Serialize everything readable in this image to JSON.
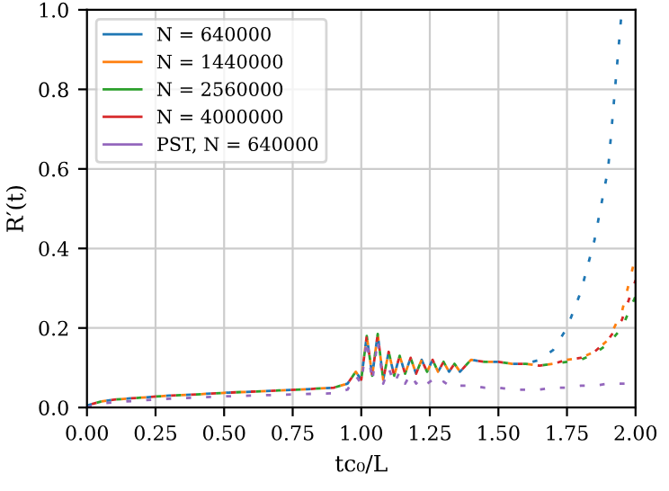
{
  "chart_data": {
    "type": "line",
    "xlabel": "tc₀/L",
    "ylabel": "R′(t)",
    "x": [
      0,
      0.05,
      0.1,
      0.2,
      0.3,
      0.4,
      0.5,
      0.6,
      0.7,
      0.8,
      0.9,
      0.95,
      0.98,
      1.0,
      1.02,
      1.04,
      1.06,
      1.08,
      1.1,
      1.12,
      1.14,
      1.16,
      1.18,
      1.2,
      1.22,
      1.24,
      1.26,
      1.28,
      1.3,
      1.32,
      1.34,
      1.36,
      1.4,
      1.45,
      1.5,
      1.55,
      1.6,
      1.65,
      1.7,
      1.75,
      1.8,
      1.85,
      1.9,
      1.95,
      2.0
    ],
    "series": [
      {
        "name": "N = 640000",
        "color": "#1f77b4",
        "values": [
          0.005,
          0.015,
          0.02,
          0.025,
          0.03,
          0.033,
          0.037,
          0.04,
          0.043,
          0.046,
          0.05,
          0.06,
          0.09,
          0.07,
          0.18,
          0.08,
          0.185,
          0.07,
          0.14,
          0.08,
          0.13,
          0.085,
          0.125,
          0.085,
          0.12,
          0.09,
          0.12,
          0.09,
          0.115,
          0.09,
          0.11,
          0.09,
          0.12,
          0.115,
          0.115,
          0.11,
          0.11,
          0.12,
          0.145,
          0.2,
          0.29,
          0.42,
          0.6,
          1.0,
          null
        ]
      },
      {
        "name": "N = 1440000",
        "color": "#ff7f0e",
        "values": [
          0.005,
          0.015,
          0.02,
          0.025,
          0.03,
          0.033,
          0.037,
          0.04,
          0.043,
          0.046,
          0.05,
          0.06,
          0.09,
          0.07,
          0.18,
          0.08,
          0.185,
          0.07,
          0.14,
          0.08,
          0.13,
          0.085,
          0.125,
          0.085,
          0.12,
          0.09,
          0.12,
          0.09,
          0.115,
          0.09,
          0.11,
          0.09,
          0.12,
          0.115,
          0.115,
          0.11,
          0.11,
          0.105,
          0.11,
          0.12,
          0.125,
          0.14,
          0.17,
          0.24,
          0.38
        ]
      },
      {
        "name": "N = 2560000",
        "color": "#2ca02c",
        "values": [
          0.005,
          0.015,
          0.02,
          0.025,
          0.03,
          0.033,
          0.037,
          0.04,
          0.043,
          0.046,
          0.05,
          0.06,
          0.09,
          0.07,
          0.18,
          0.08,
          0.185,
          0.07,
          0.14,
          0.08,
          0.13,
          0.085,
          0.125,
          0.085,
          0.12,
          0.09,
          0.12,
          0.09,
          0.115,
          0.09,
          0.11,
          0.09,
          0.12,
          0.115,
          0.115,
          0.11,
          0.11,
          0.105,
          0.11,
          0.115,
          0.12,
          0.135,
          0.16,
          0.2,
          0.28
        ]
      },
      {
        "name": "N = 4000000",
        "color": "#d62728",
        "values": [
          0.005,
          0.015,
          0.02,
          0.025,
          0.03,
          0.033,
          0.037,
          0.04,
          0.043,
          0.046,
          0.05,
          0.06,
          0.09,
          0.07,
          0.18,
          0.08,
          0.185,
          0.07,
          0.14,
          0.08,
          0.13,
          0.085,
          0.125,
          0.085,
          0.12,
          0.09,
          0.12,
          0.09,
          0.115,
          0.09,
          0.11,
          0.09,
          0.12,
          0.115,
          0.115,
          0.11,
          0.11,
          0.105,
          0.11,
          0.12,
          0.125,
          0.14,
          0.17,
          0.22,
          0.32
        ]
      },
      {
        "name": "PST, N = 640000",
        "color": "#9467bd",
        "values": [
          0,
          0.01,
          0.013,
          0.018,
          0.022,
          0.025,
          0.028,
          0.03,
          0.032,
          0.034,
          0.036,
          0.045,
          0.08,
          0.06,
          0.17,
          0.065,
          0.17,
          0.06,
          0.1,
          0.06,
          0.09,
          0.06,
          0.085,
          0.06,
          0.075,
          0.06,
          0.07,
          0.055,
          0.065,
          0.055,
          0.06,
          0.055,
          0.055,
          0.05,
          0.05,
          0.045,
          0.045,
          0.045,
          0.05,
          0.05,
          0.055,
          0.055,
          0.06,
          0.06,
          0.06
        ]
      }
    ],
    "xlim": [
      0,
      2
    ],
    "ylim": [
      0,
      1
    ],
    "xticks": [
      {
        "value": 0,
        "label": "0.00"
      },
      0.25,
      {
        "value": 0.5,
        "label": "0.50"
      },
      0.75,
      {
        "value": 1,
        "label": "1.00"
      },
      1.25,
      {
        "value": 1.5,
        "label": "1.50"
      },
      1.75,
      {
        "value": 2,
        "label": "2.00"
      }
    ],
    "yticks": [
      {
        "value": 0,
        "label": "0.0"
      },
      0.2,
      0.4,
      0.6,
      0.8,
      {
        "value": 1,
        "label": "1.0"
      }
    ],
    "grid": true,
    "legend": "top left",
    "line_style": "dashed",
    "marker": "none"
  }
}
